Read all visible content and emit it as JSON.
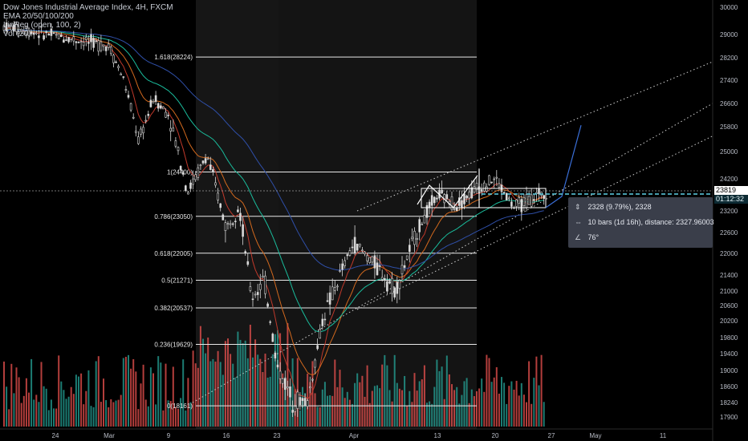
{
  "legend": {
    "title": "Dow Jones Industrial Average Index, 4H, FXCM",
    "ema": "EMA 20/50/100/200",
    "linreg": "LinReg (open, 100, 2)",
    "vol": "Vol (20)"
  },
  "price_badges": {
    "last": "23819",
    "countdown": "01:12:32"
  },
  "measure": {
    "price_line": "2328 (9.79%), 2328",
    "bars_line": "10 bars (1d 16h), distance: 2327.96003",
    "angle_line": "76°"
  },
  "colors": {
    "background": "#000000",
    "candle": "#d8d8d8",
    "vol_up": "#26a69a",
    "vol_down": "#ef5350",
    "ema20": "#c0392b",
    "ema50": "#d2691e",
    "ema100": "#1abc9c",
    "ema200": "#2f4fa8",
    "projection": "#3a6fd8",
    "crosshair": "#5fd3e8"
  },
  "chart_data": {
    "type": "candlestick",
    "y_axis_ticks": [
      30000,
      29000,
      28200,
      27400,
      26600,
      25800,
      25000,
      24200,
      23200,
      22600,
      22000,
      21400,
      21000,
      20600,
      20200,
      19800,
      19400,
      19000,
      18600,
      18240,
      17900
    ],
    "y_axis_range": [
      17700,
      30200
    ],
    "x_axis_ticks": [
      "24",
      "Mar",
      "9",
      "16",
      "23",
      "Apr",
      "13",
      "20",
      "27",
      "May",
      "11"
    ],
    "fib_levels": [
      {
        "label": "1.618(28224)",
        "value": 28224
      },
      {
        "label": "1(24400)",
        "value": 24400
      },
      {
        "label": "0.786(23050)",
        "value": 23050
      },
      {
        "label": "0.618(22005)",
        "value": 22005
      },
      {
        "label": "0.5(21271)",
        "value": 21271
      },
      {
        "label": "0.382(20537)",
        "value": 20537
      },
      {
        "label": "0.236(19629)",
        "value": 19629
      },
      {
        "label": "0(18161)",
        "value": 18161
      }
    ],
    "last_price": 23819,
    "close_path": [
      [
        "24",
        29300
      ],
      [
        "Mar",
        28600
      ],
      [
        "Mar",
        27400
      ],
      [
        "Mar",
        25300
      ],
      [
        "Mar",
        26800
      ],
      [
        "9",
        26200
      ],
      [
        "9",
        23800
      ],
      [
        "9",
        24900
      ],
      [
        "16",
        22700
      ],
      [
        "16",
        23400
      ],
      [
        "16",
        20800
      ],
      [
        "16",
        21300
      ],
      [
        "23",
        19100
      ],
      [
        "23",
        18300
      ],
      [
        "23",
        18250
      ],
      [
        "23",
        20300
      ],
      [
        "23",
        21300
      ],
      [
        "Apr",
        22300
      ],
      [
        "Apr",
        21700
      ],
      [
        "Apr",
        21000
      ],
      [
        "Apr",
        22600
      ],
      [
        "13",
        23700
      ],
      [
        "13",
        23400
      ],
      [
        "13",
        23900
      ],
      [
        "20",
        24200
      ],
      [
        "20",
        23300
      ],
      [
        "20",
        23600
      ],
      [
        "27",
        23819
      ]
    ]
  }
}
